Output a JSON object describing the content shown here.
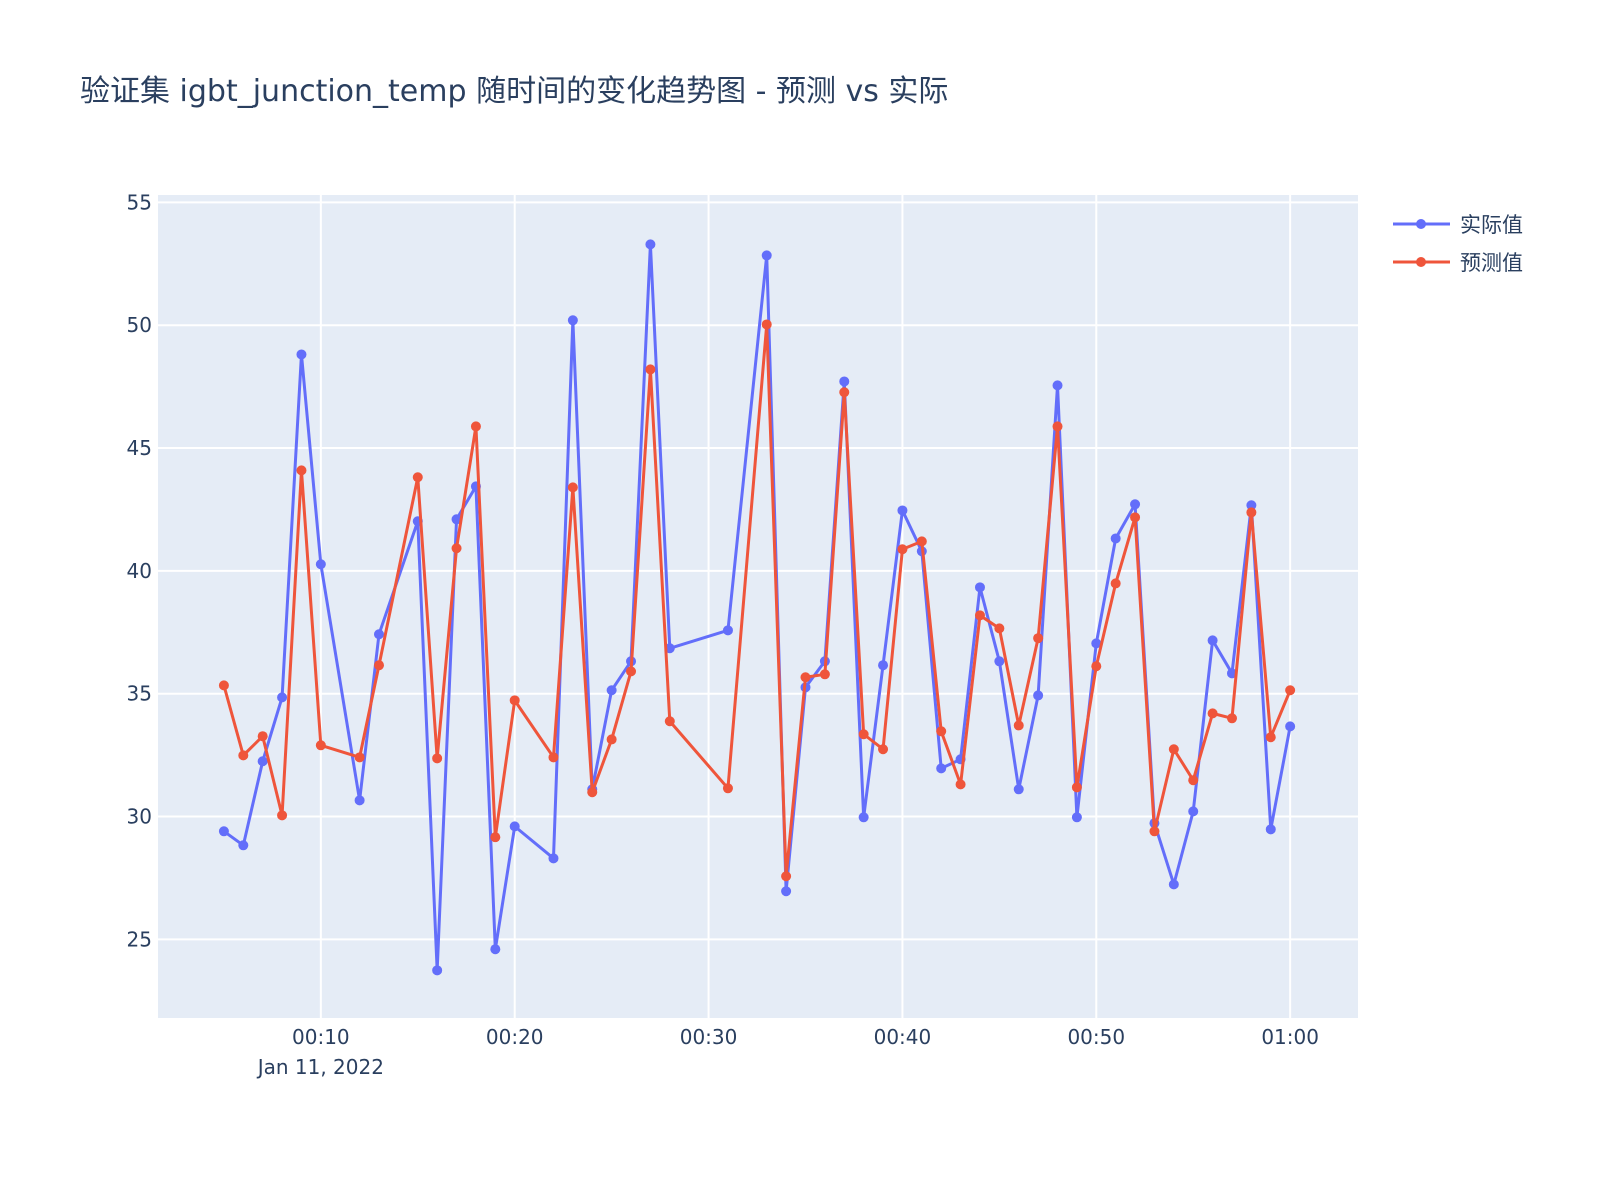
{
  "chart_data": {
    "type": "line",
    "title": "验证集 igbt_junction_temp 随时间的变化趋势图 - 预测 vs 实际",
    "xlabel": "",
    "ylabel": "",
    "date_label": "Jan 11, 2022",
    "x_unit": "minutes after 00:00 on Jan 11, 2022",
    "x": [
      5,
      6,
      7,
      8,
      9,
      10,
      12,
      13,
      15,
      16,
      17,
      18,
      19,
      20,
      22,
      23,
      24,
      25,
      26,
      27,
      28,
      31,
      33,
      34,
      35,
      36,
      37,
      38,
      39,
      40,
      41,
      42,
      43,
      44,
      45,
      46,
      47,
      48,
      49,
      50,
      51,
      52,
      53,
      54,
      55,
      56,
      57,
      58,
      59,
      60
    ],
    "xlim": [
      1.6,
      63.5
    ],
    "ylim": [
      21.8,
      55.3
    ],
    "x_ticks": [
      {
        "value": 10,
        "label": "00:10"
      },
      {
        "value": 20,
        "label": "00:20"
      },
      {
        "value": 30,
        "label": "00:30"
      },
      {
        "value": 40,
        "label": "00:40"
      },
      {
        "value": 50,
        "label": "00:50"
      },
      {
        "value": 60,
        "label": "01:00"
      }
    ],
    "y_ticks": [
      {
        "value": 25,
        "label": "25"
      },
      {
        "value": 30,
        "label": "30"
      },
      {
        "value": 35,
        "label": "35"
      },
      {
        "value": 40,
        "label": "40"
      },
      {
        "value": 45,
        "label": "45"
      },
      {
        "value": 50,
        "label": "50"
      },
      {
        "value": 55,
        "label": "55"
      }
    ],
    "grid": true,
    "legend_position": "top-right",
    "series": [
      {
        "name": "实际值",
        "color": "#636efa",
        "values": [
          29.4,
          28.83,
          32.25,
          34.85,
          48.81,
          40.27,
          30.66,
          37.42,
          42.02,
          23.74,
          42.1,
          43.44,
          24.6,
          29.6,
          28.3,
          50.2,
          31.11,
          35.14,
          36.32,
          53.29,
          36.85,
          37.58,
          52.84,
          26.96,
          35.26,
          36.32,
          47.71,
          29.97,
          36.16,
          42.46,
          40.8,
          31.96,
          32.33,
          39.33,
          36.32,
          31.11,
          34.93,
          47.55,
          29.97,
          37.05,
          41.32,
          42.71,
          29.73,
          27.24,
          30.21,
          37.17,
          35.83,
          42.67,
          29.48,
          33.67
        ]
      },
      {
        "name": "预测值",
        "color": "#ef553b",
        "values": [
          35.34,
          32.49,
          33.27,
          30.05,
          44.09,
          32.9,
          32.41,
          36.16,
          43.81,
          32.37,
          40.92,
          45.88,
          29.16,
          34.73,
          32.41,
          43.4,
          30.99,
          33.14,
          35.91,
          48.2,
          33.88,
          31.15,
          50.03,
          27.57,
          35.67,
          35.79,
          47.27,
          33.35,
          32.74,
          40.88,
          41.2,
          33.47,
          31.31,
          38.19,
          37.66,
          33.71,
          37.26,
          45.88,
          31.19,
          36.12,
          39.49,
          42.18,
          29.4,
          32.74,
          31.48,
          34.2,
          34.0,
          42.38,
          33.23,
          35.14
        ]
      }
    ]
  }
}
